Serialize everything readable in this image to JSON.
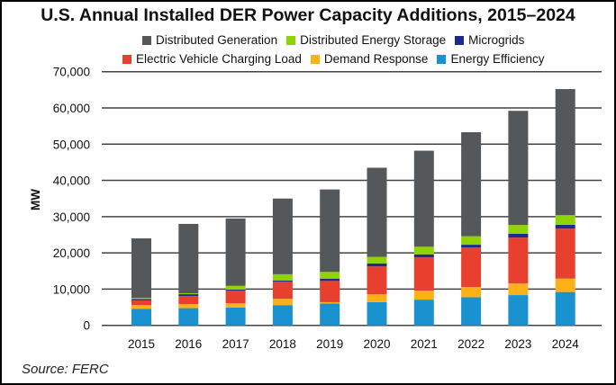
{
  "chart_data": {
    "type": "bar",
    "stacked": true,
    "title": "U.S. Annual Installed DER Power Capacity Additions, 2015–2024",
    "xlabel": "",
    "ylabel": "MW",
    "ylim": [
      0,
      70000
    ],
    "yticks": [
      "0",
      "10,000",
      "20,000",
      "30,000",
      "40,000",
      "50,000",
      "60,000",
      "70,000"
    ],
    "ytick_values": [
      0,
      10000,
      20000,
      30000,
      40000,
      50000,
      60000,
      70000
    ],
    "grid": "horizontal",
    "legend_position": "top",
    "categories": [
      "2015",
      "2016",
      "2017",
      "2018",
      "2019",
      "2020",
      "2021",
      "2022",
      "2023",
      "2024"
    ],
    "series": [
      {
        "name": "Energy Efficiency",
        "color": "#1a92cf",
        "values": [
          4600,
          4750,
          4900,
          5600,
          6000,
          6400,
          7100,
          7750,
          8350,
          9200
        ]
      },
      {
        "name": "Demand Response",
        "color": "#fbb117",
        "values": [
          1000,
          1100,
          1200,
          1750,
          400,
          2200,
          2500,
          2850,
          3250,
          3700
        ]
      },
      {
        "name": "Electric Vehicle Charging Load",
        "color": "#e8402f",
        "values": [
          1300,
          2250,
          3500,
          4750,
          5850,
          7650,
          9150,
          10900,
          12600,
          13800
        ]
      },
      {
        "name": "Microgrids",
        "color": "#1a2d8f",
        "values": [
          400,
          500,
          250,
          300,
          650,
          850,
          850,
          750,
          1050,
          1050
        ]
      },
      {
        "name": "Distributed Energy Storage",
        "color": "#8fd400",
        "values": [
          300,
          250,
          1050,
          1700,
          1850,
          1800,
          2100,
          2350,
          2450,
          2650
        ]
      },
      {
        "name": "Distributed Generation",
        "color": "#55585a",
        "values": [
          16400,
          19150,
          18600,
          20900,
          22750,
          24600,
          26500,
          28700,
          31500,
          34800
        ]
      }
    ],
    "legend_rows": [
      [
        "Distributed Generation",
        "Distributed Energy Storage",
        "Microgrids"
      ],
      [
        "Electric Vehicle Charging Load",
        "Demand Response",
        "Energy Efficiency"
      ]
    ]
  },
  "source": "Source: FERC"
}
